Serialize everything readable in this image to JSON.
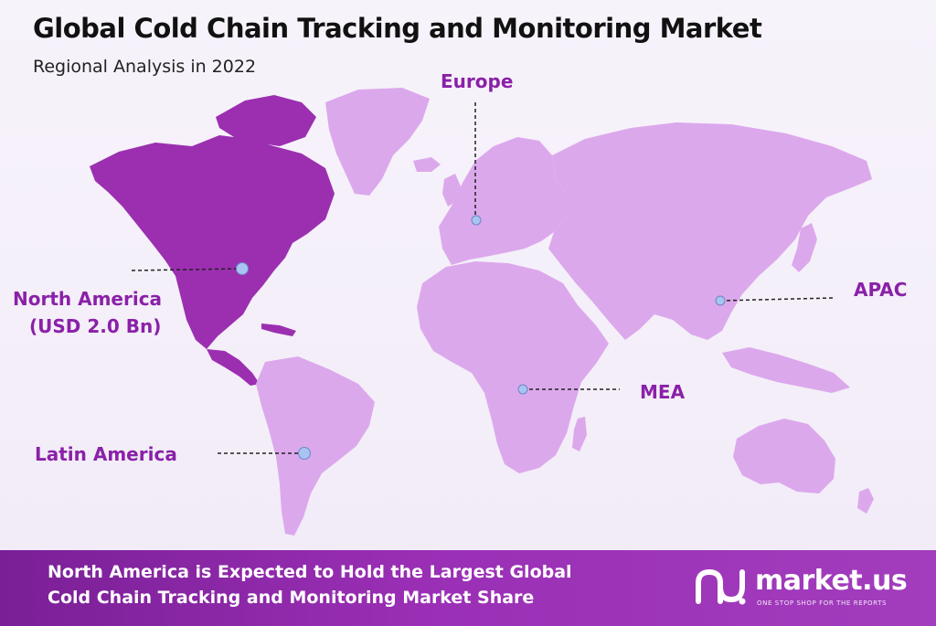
{
  "header": {
    "title": "Global Cold Chain Tracking and Monitoring Market",
    "subtitle": "Regional Analysis in 2022"
  },
  "regions": {
    "north_america": {
      "name": "North America",
      "value": "(USD 2.0 Bn)"
    },
    "europe": {
      "name": "Europe"
    },
    "apac": {
      "name": "APAC"
    },
    "mea": {
      "name": "MEA"
    },
    "latin_america": {
      "name": "Latin America"
    }
  },
  "banner": {
    "line1": "North America is Expected to Hold the Largest Global",
    "line2": "Cold Chain Tracking and Monitoring Market Share"
  },
  "brand": {
    "name": "market.us",
    "tagline": "ONE STOP SHOP FOR THE REPORTS",
    "logo_icon": "market-us-logo-icon"
  },
  "colors": {
    "highlight_region": "#9b2fb0",
    "other_regions": "#dca8ec",
    "label": "#8a21a8",
    "banner": "#8a27a6",
    "marker": "#a9c4f0"
  }
}
